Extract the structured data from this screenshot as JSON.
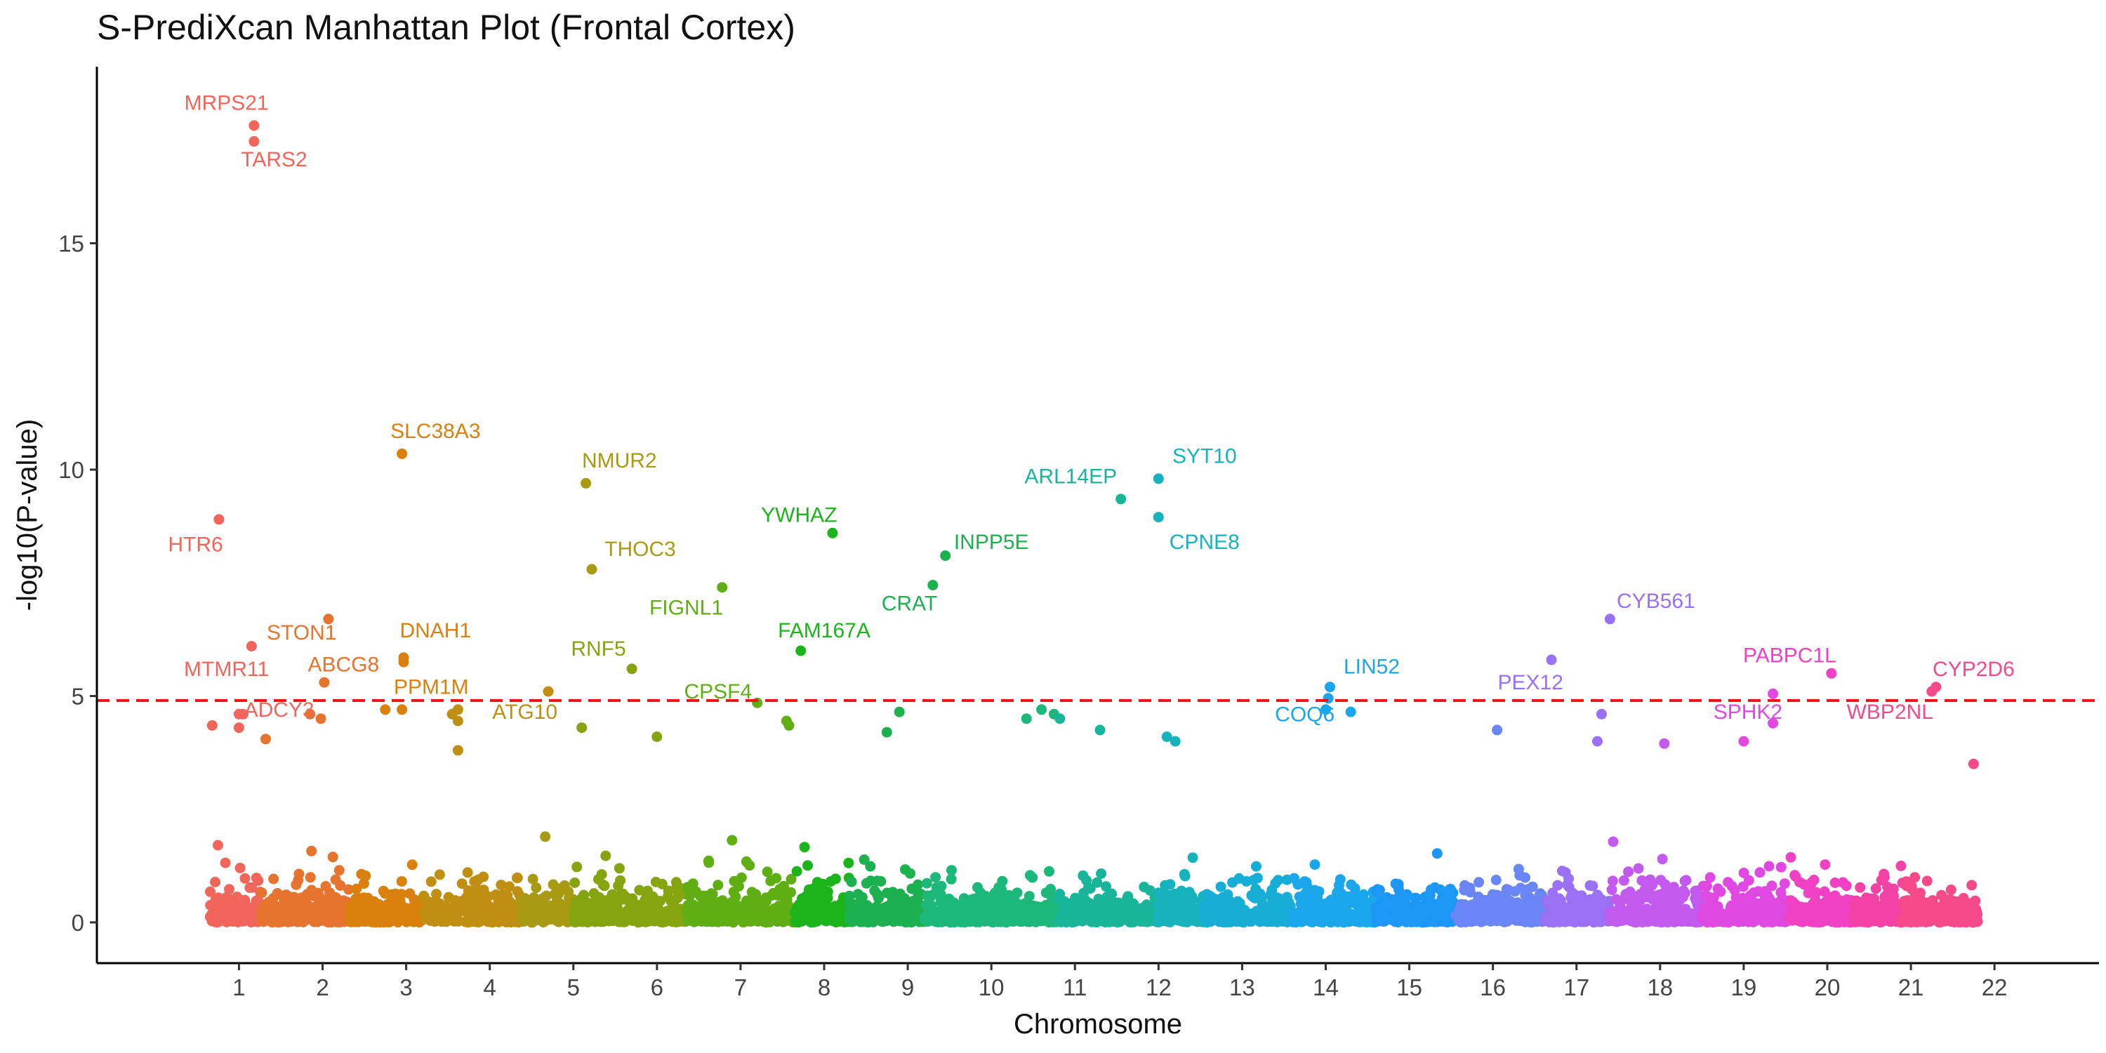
{
  "title": "S-PrediXcan Manhattan Plot (Frontal Cortex)",
  "chart_data": {
    "type": "scatter",
    "title": "S-PrediXcan Manhattan Plot (Frontal Cortex)",
    "xlabel": "Chromosome",
    "ylabel": "-log10(P-value)",
    "ylim": [
      -0.9,
      18.9
    ],
    "y_ticks": [
      0,
      5,
      10,
      15
    ],
    "threshold": 4.9,
    "threshold_color": "#ee1111",
    "grid": false,
    "legend": "none",
    "chromosomes": [
      {
        "label": "1",
        "x": 1,
        "start": 0.64,
        "end": 1.27,
        "color": "#f2655a"
      },
      {
        "label": "2",
        "x": 2,
        "start": 1.27,
        "end": 2.32,
        "color": "#e6732e"
      },
      {
        "label": "3",
        "x": 3,
        "start": 2.32,
        "end": 3.2,
        "color": "#d9800d"
      },
      {
        "label": "4",
        "x": 4,
        "start": 3.2,
        "end": 4.38,
        "color": "#c08e11"
      },
      {
        "label": "5",
        "x": 5,
        "start": 4.38,
        "end": 5.0,
        "color": "#a89a12"
      },
      {
        "label": "6",
        "x": 6,
        "start": 5.0,
        "end": 6.35,
        "color": "#86a40f"
      },
      {
        "label": "7",
        "x": 7,
        "start": 6.35,
        "end": 7.65,
        "color": "#5fae14"
      },
      {
        "label": "8",
        "x": 8,
        "start": 7.65,
        "end": 8.3,
        "color": "#1cb41b"
      },
      {
        "label": "9",
        "x": 9,
        "start": 8.3,
        "end": 9.2,
        "color": "#1cb04f"
      },
      {
        "label": "10",
        "x": 10,
        "start": 9.2,
        "end": 10.8,
        "color": "#1cb87a"
      },
      {
        "label": "11",
        "x": 11,
        "start": 10.8,
        "end": 12.0,
        "color": "#19b59b"
      },
      {
        "label": "12",
        "x": 12,
        "start": 12.0,
        "end": 12.55,
        "color": "#17b3bd"
      },
      {
        "label": "13",
        "x": 13,
        "start": 12.55,
        "end": 13.6,
        "color": "#16aed6"
      },
      {
        "label": "14",
        "x": 14,
        "start": 13.6,
        "end": 14.6,
        "color": "#1aa6ea"
      },
      {
        "label": "15",
        "x": 15,
        "start": 14.6,
        "end": 15.55,
        "color": "#1c97f6"
      },
      {
        "label": "16",
        "x": 16,
        "start": 15.55,
        "end": 16.6,
        "color": "#6a86f5"
      },
      {
        "label": "17",
        "x": 17,
        "start": 16.6,
        "end": 17.4,
        "color": "#9a70f5"
      },
      {
        "label": "18",
        "x": 18,
        "start": 17.4,
        "end": 18.5,
        "color": "#c35aef"
      },
      {
        "label": "19",
        "x": 19,
        "start": 18.5,
        "end": 19.55,
        "color": "#e048e2"
      },
      {
        "label": "20",
        "x": 20,
        "start": 19.55,
        "end": 20.3,
        "color": "#f040c4"
      },
      {
        "label": "21",
        "x": 21,
        "start": 20.3,
        "end": 20.9,
        "color": "#f441a5"
      },
      {
        "label": "22",
        "x": 22,
        "start": 20.9,
        "end": 21.8,
        "color": "#f5498a"
      }
    ],
    "labeled_points": [
      {
        "gene": "MRPS21",
        "chr": "1",
        "x": 1.18,
        "y": 17.6,
        "lx": 0.85,
        "ly": 18.1
      },
      {
        "gene": "TARS2",
        "chr": "1",
        "x": 1.18,
        "y": 17.25,
        "lx": 1.42,
        "ly": 16.85
      },
      {
        "gene": "HTR6",
        "chr": "1",
        "x": 0.76,
        "y": 8.9,
        "lx": 0.48,
        "ly": 8.35
      },
      {
        "gene": "MTMR11",
        "chr": "1",
        "x": 1.15,
        "y": 6.1,
        "lx": 0.85,
        "ly": 5.6
      },
      {
        "gene": "ADCY3",
        "chr": "1",
        "x": 1.05,
        "y": 4.6,
        "lx": 1.48,
        "ly": 4.7
      },
      {
        "gene": "STON1",
        "chr": "2",
        "x": 2.07,
        "y": 6.7,
        "lx": 1.75,
        "ly": 6.4
      },
      {
        "gene": "ABCG8",
        "chr": "2",
        "x": 2.02,
        "y": 5.3,
        "lx": 2.25,
        "ly": 5.7
      },
      {
        "gene": "SLC38A3",
        "chr": "3",
        "x": 2.95,
        "y": 10.35,
        "lx": 3.35,
        "ly": 10.85
      },
      {
        "gene": "DNAH1",
        "chr": "3",
        "x": 2.97,
        "y": 5.85,
        "lx": 3.35,
        "ly": 6.45
      },
      {
        "gene": "PPM1M",
        "chr": "3",
        "x": 2.97,
        "y": 5.75,
        "lx": 3.3,
        "ly": 5.2
      },
      {
        "gene": "NMUR2",
        "chr": "5",
        "x": 5.15,
        "y": 9.7,
        "lx": 5.55,
        "ly": 10.2
      },
      {
        "gene": "THOC3",
        "chr": "5",
        "x": 5.22,
        "y": 7.8,
        "lx": 5.8,
        "ly": 8.25
      },
      {
        "gene": "RNF5",
        "chr": "6",
        "x": 5.7,
        "y": 5.6,
        "lx": 5.3,
        "ly": 6.05
      },
      {
        "gene": "ATG10",
        "chr": "4",
        "x": 4.7,
        "y": 5.1,
        "lx": 4.42,
        "ly": 4.65
      },
      {
        "gene": "FIGNL1",
        "chr": "7",
        "x": 6.78,
        "y": 7.4,
        "lx": 6.35,
        "ly": 6.95
      },
      {
        "gene": "CPSF4",
        "chr": "7",
        "x": 7.2,
        "y": 4.85,
        "lx": 6.73,
        "ly": 5.1
      },
      {
        "gene": "YWHAZ",
        "chr": "8",
        "x": 8.1,
        "y": 8.6,
        "lx": 7.7,
        "ly": 9.0
      },
      {
        "gene": "FAM167A",
        "chr": "8",
        "x": 7.72,
        "y": 6.0,
        "lx": 8.0,
        "ly": 6.45
      },
      {
        "gene": "ARL14EP",
        "chr": "11",
        "x": 11.55,
        "y": 9.35,
        "lx": 10.95,
        "ly": 9.85
      },
      {
        "gene": "CRAT",
        "chr": "9",
        "x": 9.3,
        "y": 7.45,
        "lx": 9.02,
        "ly": 7.05
      },
      {
        "gene": "INPP5E",
        "chr": "9",
        "x": 9.45,
        "y": 8.1,
        "lx": 10.0,
        "ly": 8.4
      },
      {
        "gene": "SYT10",
        "chr": "12",
        "x": 12.0,
        "y": 9.8,
        "lx": 12.55,
        "ly": 10.3
      },
      {
        "gene": "CPNE8",
        "chr": "12",
        "x": 12.0,
        "y": 8.95,
        "lx": 12.55,
        "ly": 8.4
      },
      {
        "gene": "LIN52",
        "chr": "14",
        "x": 14.05,
        "y": 5.2,
        "lx": 14.55,
        "ly": 5.65
      },
      {
        "gene": "COQ6",
        "chr": "14",
        "x": 14.03,
        "y": 4.95,
        "lx": 13.75,
        "ly": 4.6
      },
      {
        "gene": "CYB561",
        "chr": "17",
        "x": 17.4,
        "y": 6.7,
        "lx": 17.95,
        "ly": 7.1
      },
      {
        "gene": "PEX12",
        "chr": "17",
        "x": 16.7,
        "y": 5.8,
        "lx": 16.45,
        "ly": 5.3
      },
      {
        "gene": "PABPC1L",
        "chr": "20",
        "x": 20.05,
        "y": 5.5,
        "lx": 19.55,
        "ly": 5.9
      },
      {
        "gene": "SPHK2",
        "chr": "19",
        "x": 19.35,
        "y": 5.05,
        "lx": 19.05,
        "ly": 4.65
      },
      {
        "gene": "WBP2NL",
        "chr": "22",
        "x": 21.25,
        "y": 5.1,
        "lx": 20.75,
        "ly": 4.65
      },
      {
        "gene": "CYP2D6",
        "chr": "22",
        "x": 21.3,
        "y": 5.2,
        "lx": 21.75,
        "ly": 5.6
      }
    ],
    "extra_points": [
      {
        "x": 0.68,
        "y": 4.35
      },
      {
        "x": 1.0,
        "y": 4.6
      },
      {
        "x": 1.0,
        "y": 4.3
      },
      {
        "x": 1.32,
        "y": 4.05
      },
      {
        "x": 1.85,
        "y": 4.6
      },
      {
        "x": 1.98,
        "y": 4.5
      },
      {
        "x": 2.75,
        "y": 4.7
      },
      {
        "x": 2.95,
        "y": 4.7
      },
      {
        "x": 3.55,
        "y": 4.6
      },
      {
        "x": 3.62,
        "y": 4.7
      },
      {
        "x": 3.62,
        "y": 4.45
      },
      {
        "x": 3.62,
        "y": 3.8
      },
      {
        "x": 5.1,
        "y": 4.3
      },
      {
        "x": 6.0,
        "y": 4.1
      },
      {
        "x": 7.55,
        "y": 4.45
      },
      {
        "x": 7.58,
        "y": 4.35
      },
      {
        "x": 8.9,
        "y": 4.65
      },
      {
        "x": 8.75,
        "y": 4.2
      },
      {
        "x": 10.42,
        "y": 4.5
      },
      {
        "x": 10.6,
        "y": 4.7
      },
      {
        "x": 10.75,
        "y": 4.6
      },
      {
        "x": 10.82,
        "y": 4.5
      },
      {
        "x": 11.3,
        "y": 4.25
      },
      {
        "x": 12.1,
        "y": 4.1
      },
      {
        "x": 12.2,
        "y": 4.0
      },
      {
        "x": 14.0,
        "y": 4.7
      },
      {
        "x": 14.3,
        "y": 4.65
      },
      {
        "x": 16.05,
        "y": 4.25
      },
      {
        "x": 17.3,
        "y": 4.6
      },
      {
        "x": 17.25,
        "y": 4.0
      },
      {
        "x": 18.05,
        "y": 3.95
      },
      {
        "x": 19.0,
        "y": 4.0
      },
      {
        "x": 19.35,
        "y": 4.4
      },
      {
        "x": 21.75,
        "y": 3.5
      }
    ]
  }
}
